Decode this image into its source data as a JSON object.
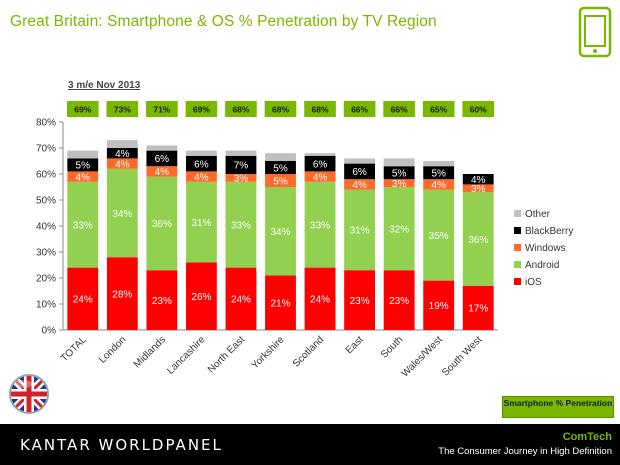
{
  "header": {
    "title": "Great Britain: Smartphone & OS % Penetration by TV Region",
    "period": "3 m/e Nov 2013"
  },
  "colors": {
    "accent": "#7ab800",
    "ios": "#ff0000",
    "android": "#92d050",
    "windows": "#ff6a2a",
    "blackberry": "#000000",
    "other": "#c0c0c0"
  },
  "penetration_box": {
    "label": "Smartphone % Penetration"
  },
  "footer": {
    "brand": "KANTAR WORLDPANEL",
    "product": "ComTech",
    "tagline": "The Consumer Journey in High Definition"
  },
  "chart_data": {
    "type": "bar",
    "stacked": true,
    "categories": [
      "TOTAL",
      "London",
      "Midlands",
      "Lancashire",
      "North East",
      "Yorkshire",
      "Scotland",
      "East",
      "South",
      "Wales/West",
      "South West"
    ],
    "ylim": [
      0,
      80
    ],
    "yticks": [
      "0%",
      "10%",
      "20%",
      "30%",
      "40%",
      "50%",
      "60%",
      "70%",
      "80%"
    ],
    "legend_position": "right",
    "smartphone_penetration": [
      "69%",
      "73%",
      "71%",
      "69%",
      "68%",
      "68%",
      "68%",
      "66%",
      "66%",
      "65%",
      "60%"
    ],
    "series": [
      {
        "name": "iOS",
        "values": [
          24,
          28,
          23,
          26,
          24,
          21,
          24,
          23,
          23,
          19,
          17
        ]
      },
      {
        "name": "Android",
        "values": [
          33,
          34,
          36,
          31,
          33,
          34,
          33,
          31,
          32,
          35,
          36
        ]
      },
      {
        "name": "Windows",
        "values": [
          4,
          4,
          4,
          4,
          3,
          5,
          4,
          4,
          3,
          4,
          3
        ]
      },
      {
        "name": "BlackBerry",
        "values": [
          5,
          4,
          6,
          6,
          7,
          5,
          6,
          6,
          5,
          5,
          4
        ]
      },
      {
        "name": "Other",
        "values": [
          3,
          3,
          2,
          2,
          2,
          3,
          1,
          2,
          3,
          2,
          0
        ]
      }
    ]
  }
}
